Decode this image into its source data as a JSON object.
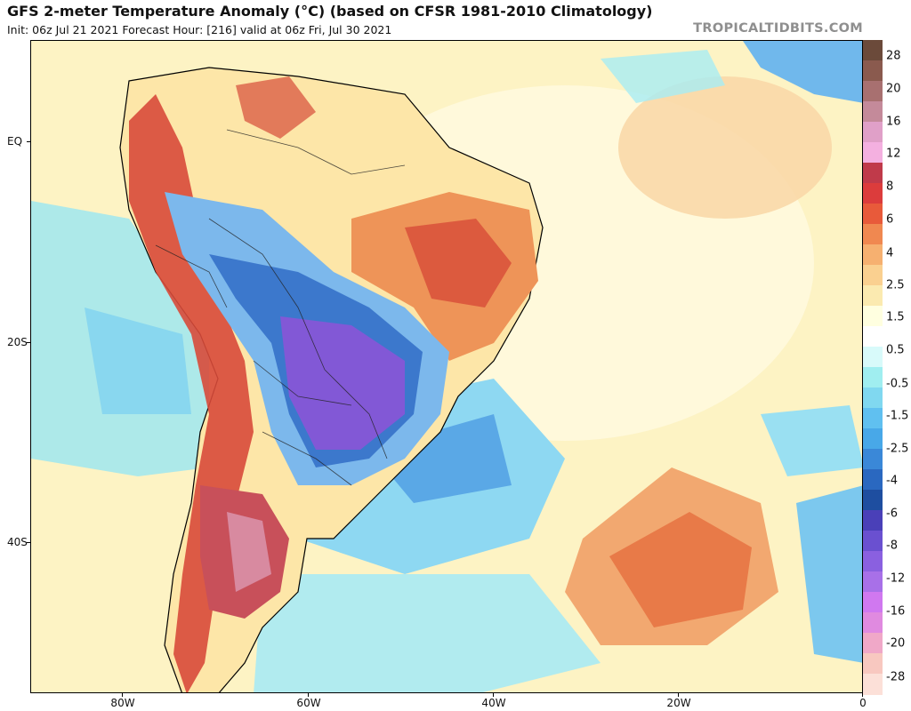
{
  "header": {
    "title": "GFS 2-meter Temperature Anomaly (°C) (based on CFSR 1981-2010 Climatology)",
    "subtitle": "Init: 06z Jul 21 2021   Forecast Hour: [216]   valid at 06z Fri, Jul 30 2021",
    "brand": "TROPICALTIDBITS.COM"
  },
  "map": {
    "latitude_labels": [
      "EQ",
      "20S",
      "40S"
    ],
    "longitude_labels": [
      "80W",
      "60W",
      "40W",
      "20W",
      "0"
    ],
    "region": "South America and South Atlantic"
  },
  "colorbar": {
    "labels": [
      "28",
      "20",
      "16",
      "12",
      "8",
      "6",
      "4",
      "2.5",
      "1.5",
      "0.5",
      "-0.5",
      "-1.5",
      "-2.5",
      "-4",
      "-6",
      "-8",
      "-12",
      "-16",
      "-20",
      "-28"
    ],
    "colors": [
      "#6b4a3a",
      "#8a5a4e",
      "#a87070",
      "#c48a9a",
      "#e0a0c8",
      "#f4b0e0",
      "#c03a4a",
      "#dc3c3c",
      "#e85a3a",
      "#f08850",
      "#f6b070",
      "#fad090",
      "#fbeab0",
      "#ffffe0",
      "#ffffff",
      "#d8fafa",
      "#a0eef0",
      "#80d8f0",
      "#60c0f0",
      "#48a8e8",
      "#3a88d8",
      "#2a68c0",
      "#1e4ea0",
      "#4a40b8",
      "#6a50d0",
      "#8a60e0",
      "#a870e8",
      "#d078f0",
      "#e08ae0",
      "#f0a8c8",
      "#f8c8c0",
      "#fce0d8"
    ]
  }
}
